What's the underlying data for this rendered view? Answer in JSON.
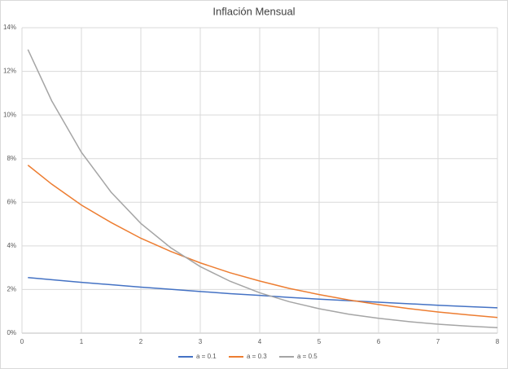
{
  "chart_data": {
    "type": "line",
    "title": "Inflación Mensual",
    "x": [
      0.1,
      0.5,
      1,
      1.5,
      2,
      2.5,
      3,
      3.5,
      4,
      4.5,
      5,
      5.5,
      6,
      6.5,
      7,
      7.5,
      8
    ],
    "series": [
      {
        "name": "a = 0.1",
        "color": "#4472c4",
        "values": [
          2.55,
          2.45,
          2.33,
          2.22,
          2.11,
          2.01,
          1.91,
          1.81,
          1.73,
          1.64,
          1.56,
          1.49,
          1.42,
          1.35,
          1.28,
          1.22,
          1.16
        ]
      },
      {
        "name": "a = 0.3",
        "color": "#ed7d31",
        "values": [
          7.7,
          6.83,
          5.87,
          5.07,
          4.35,
          3.75,
          3.22,
          2.77,
          2.39,
          2.05,
          1.77,
          1.52,
          1.31,
          1.13,
          0.97,
          0.84,
          0.72
        ]
      },
      {
        "name": "a = 0.5",
        "color": "#a5a5a5",
        "values": [
          13.0,
          10.65,
          8.29,
          6.46,
          5.03,
          3.92,
          3.05,
          2.38,
          1.85,
          1.44,
          1.12,
          0.87,
          0.68,
          0.53,
          0.41,
          0.32,
          0.25
        ]
      }
    ],
    "xlim": [
      0,
      8
    ],
    "xticks": [
      0,
      1,
      2,
      3,
      4,
      5,
      6,
      7,
      8
    ],
    "ylim": [
      0,
      14
    ],
    "yticks": [
      {
        "value": 0,
        "label": "0%"
      },
      {
        "value": 2,
        "label": "2%"
      },
      {
        "value": 4,
        "label": "4%"
      },
      {
        "value": 6,
        "label": "6%"
      },
      {
        "value": 8,
        "label": "8%"
      },
      {
        "value": 10,
        "label": "10%"
      },
      {
        "value": 12,
        "label": "12%"
      },
      {
        "value": 14,
        "label": "14%"
      }
    ],
    "grid": true,
    "legend": "bottom"
  }
}
